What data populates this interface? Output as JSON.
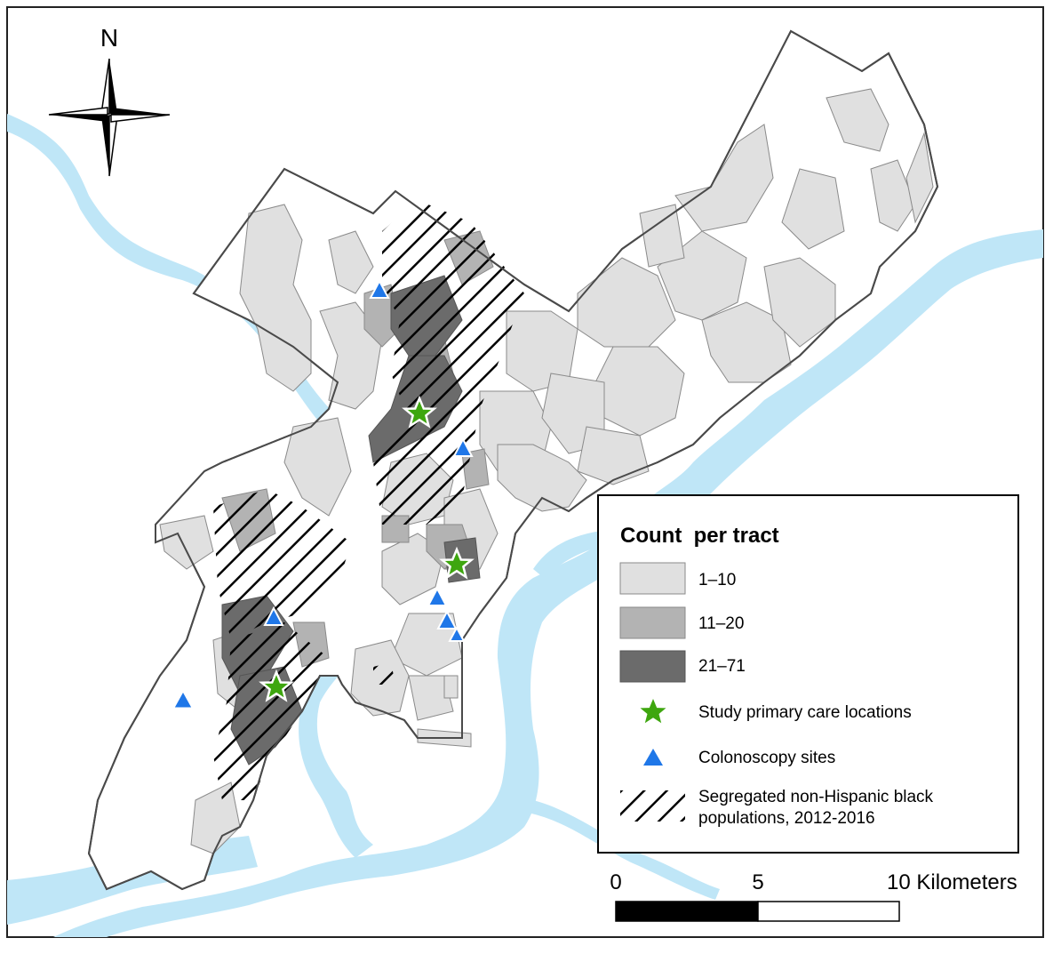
{
  "north_label": "N",
  "colors": {
    "water": "#bfe6f7",
    "outside": "#ffffff",
    "tract_low": "#e0e0e0",
    "tract_mid": "#b3b3b3",
    "tract_high": "#6b6b6b",
    "tract_edge": "#8a8a8a",
    "boundary": "#4a4a4a",
    "star": "#3ea60f",
    "triangle": "#1f77e8"
  },
  "legend": {
    "title": "Count  per tract",
    "classes": [
      {
        "label": "1–10",
        "color": "#e0e0e0"
      },
      {
        "label": "11–20",
        "color": "#b3b3b3"
      },
      {
        "label": "21–71",
        "color": "#6b6b6b"
      }
    ],
    "primary_care_label": "Study primary care locations",
    "colonoscopy_label": "Colonoscopy sites",
    "segregated_label_line1": "Segregated non-Hispanic black",
    "segregated_label_line2": "populations, 2012-2016"
  },
  "scale_bar": {
    "tick_0": "0",
    "tick_5": "5",
    "tick_10": "10 Kilometers"
  },
  "primary_care_locations_count": 3,
  "colonoscopy_sites_count": 7
}
